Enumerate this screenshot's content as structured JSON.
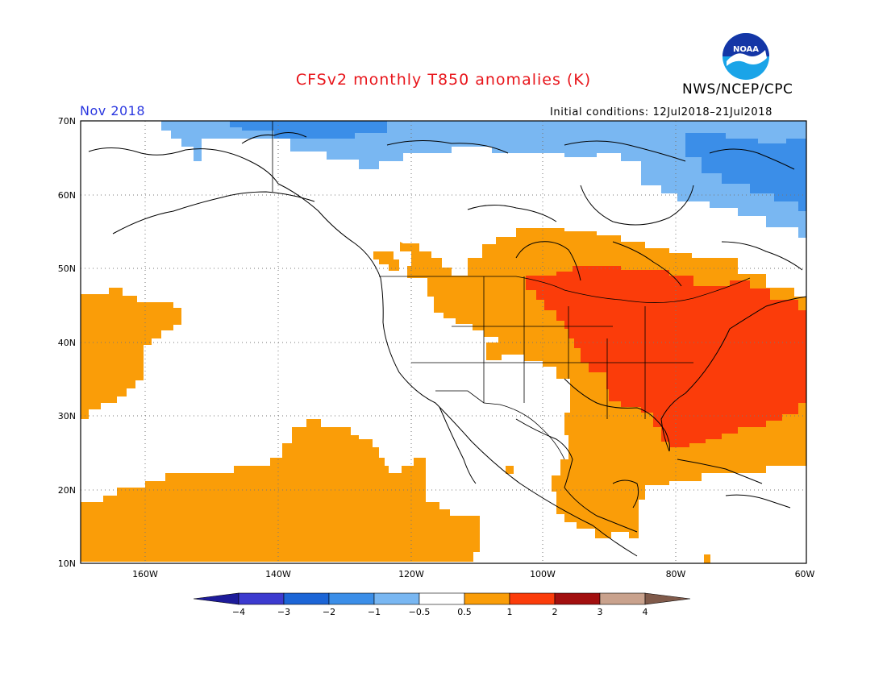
{
  "header": {
    "title": "CFSv2 monthly T850 anomalies (K)",
    "agency": "NWS/NCEP/CPC",
    "month": "Nov 2018",
    "initial_conditions": "Initial conditions: 12Jul2018–21Jul2018",
    "logo_text": "NOAA"
  },
  "axes": {
    "lat_labels": [
      "70N",
      "60N",
      "50N",
      "40N",
      "30N",
      "20N",
      "10N"
    ],
    "lon_labels": [
      "160W",
      "140W",
      "120W",
      "100W",
      "80W",
      "60W"
    ]
  },
  "colorbar": {
    "labels": [
      "−4",
      "−3",
      "−2",
      "−1",
      "−0.5",
      "0.5",
      "1",
      "2",
      "3",
      "4"
    ],
    "colors": [
      "#1d1b9a",
      "#3c3acf",
      "#1c65d6",
      "#3b8ee8",
      "#79b7f2",
      "#ffffff",
      "#fa9d08",
      "#fb3c0a",
      "#a20f0f",
      "#c9a28d",
      "#805a4a"
    ]
  }
}
